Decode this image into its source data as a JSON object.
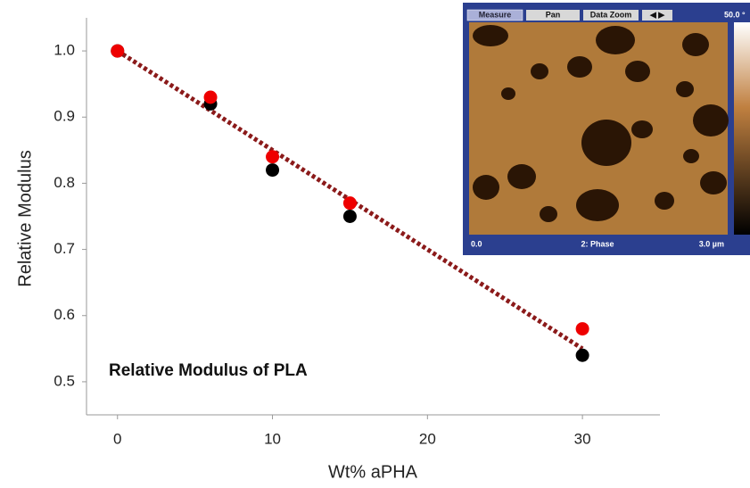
{
  "chart_data": {
    "type": "scatter",
    "x_label": "Wt% aPHA",
    "y_label": "Relative Modulus",
    "annotation": "Relative Modulus of PLA",
    "x": [
      0,
      6,
      10,
      15,
      30
    ],
    "series": [
      {
        "color": "#000000",
        "values": [
          1.0,
          0.92,
          0.82,
          0.75,
          0.54
        ]
      },
      {
        "color": "#ee0000",
        "values": [
          1.0,
          0.93,
          0.84,
          0.77,
          0.58
        ]
      }
    ],
    "trendline": {
      "x": [
        0,
        30
      ],
      "values": [
        1.0,
        0.55
      ],
      "color": "#8b1a1a"
    },
    "xlim": [
      -2,
      35
    ],
    "ylim": [
      0.45,
      1.05
    ],
    "xticks": [
      0,
      10,
      20,
      30
    ],
    "yticks": [
      {
        "value": 0.5,
        "label": "0.5"
      },
      {
        "value": 0.6,
        "label": "0.6"
      },
      {
        "value": 0.7,
        "label": "0.7"
      },
      {
        "value": 0.8,
        "label": "0.8"
      },
      {
        "value": 0.9,
        "label": "0.9"
      },
      {
        "value": 1.0,
        "label": "1.0"
      }
    ]
  },
  "inset": {
    "buttons": [
      "Measure",
      "Pan",
      "Data Zoom",
      "◀ ▶"
    ],
    "scale_top": "50.0 °",
    "bottom_left": "0.0",
    "bottom_center": "2: Phase",
    "bottom_right": "3.0 µm"
  }
}
